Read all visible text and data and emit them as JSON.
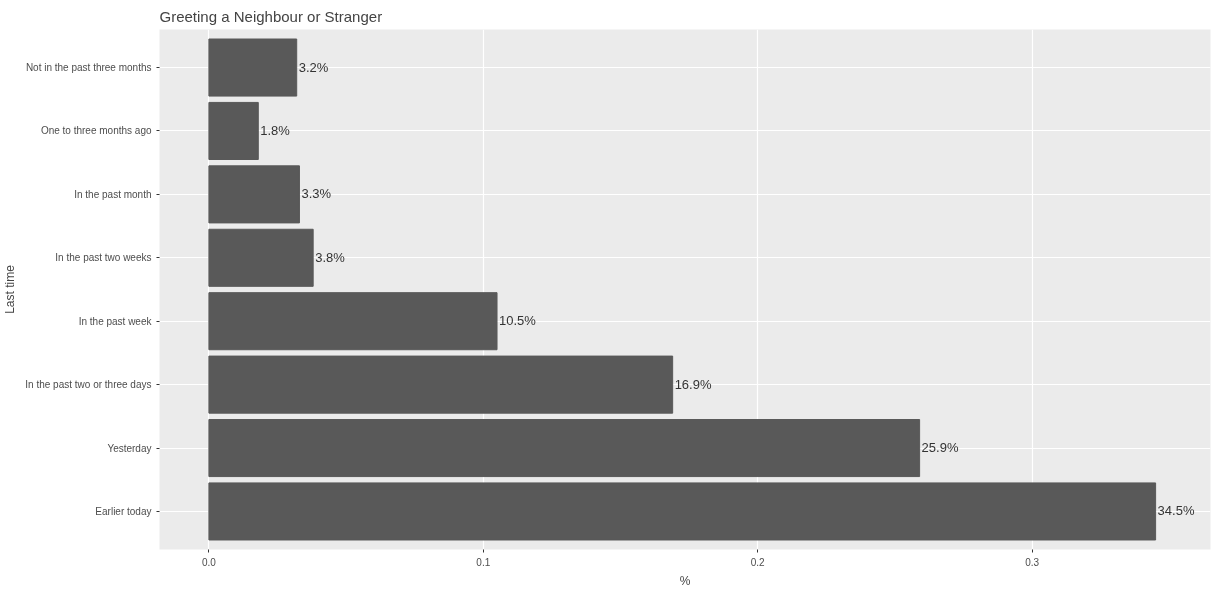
{
  "chart_data": {
    "type": "bar",
    "orientation": "horizontal",
    "title": "Greeting a Neighbour or Stranger",
    "xlabel": "%",
    "ylabel": "Last time",
    "categories": [
      "Not in the past three months",
      "One to three months ago",
      "In the past month",
      "In the past two weeks",
      "In the past week",
      "In the past two or three days",
      "Yesterday",
      "Earlier today"
    ],
    "values": [
      0.032,
      0.018,
      0.033,
      0.038,
      0.105,
      0.169,
      0.259,
      0.345
    ],
    "value_labels": [
      "3.2%",
      "1.8%",
      "3.3%",
      "3.8%",
      "10.5%",
      "16.9%",
      "25.9%",
      "34.5%"
    ],
    "color": "#595959",
    "xlim": [
      -0.018,
      0.365
    ],
    "xticks": [
      {
        "value": 0,
        "label": "0.0"
      },
      0.1,
      0.2,
      0.3
    ],
    "grid": true
  }
}
